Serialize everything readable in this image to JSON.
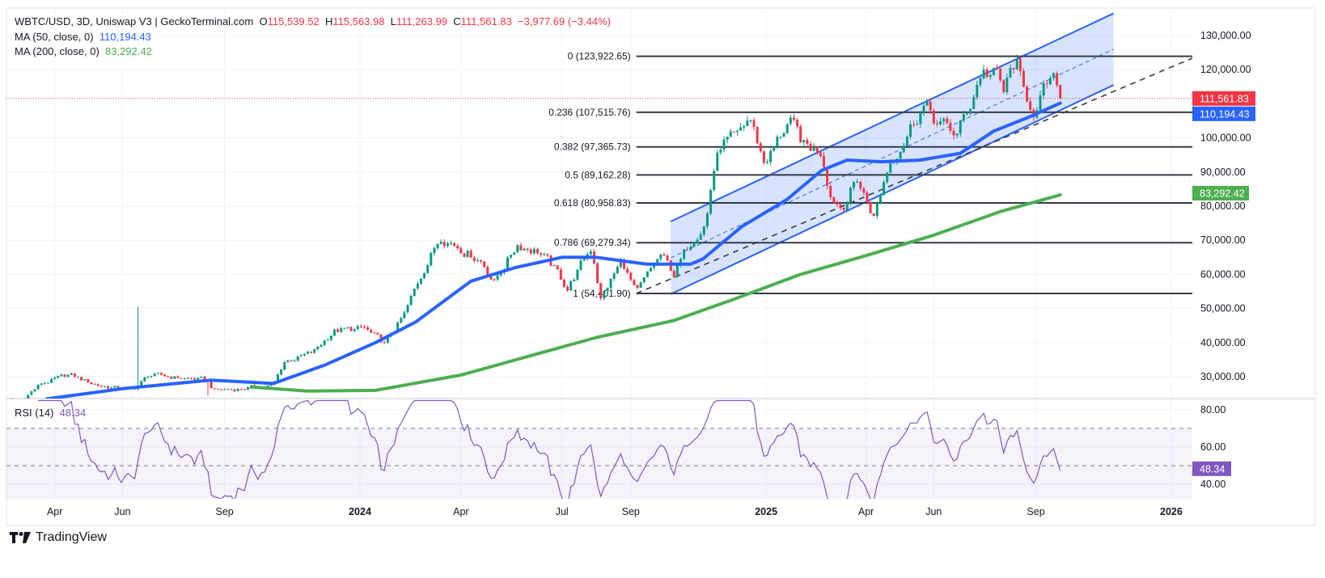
{
  "header": {
    "symbol": "WBTC/USD, 3D, Uniswap V3 | GeckoTerminal.com",
    "o_label": "O",
    "o": "115,539.52",
    "h_label": "H",
    "h": "115,563.98",
    "l_label": "L",
    "l": "111,263.99",
    "c_label": "C",
    "c": "111,561.83",
    "change": "−3,977.69 (−3.44%)"
  },
  "indicators": {
    "ma50": {
      "label": "MA (50, close, 0)",
      "value": "110,194.43",
      "color": "#2962ff"
    },
    "ma200": {
      "label": "MA (200, close, 0)",
      "value": "83,292.42",
      "color": "#4caf50"
    },
    "rsi": {
      "label": "RSI (14)",
      "value": "48.34",
      "color": "#7e57c2"
    }
  },
  "brand": "TradingView",
  "colors": {
    "up": "#089981",
    "down": "#f23645",
    "channel": "#2962ff",
    "fib": "#131722",
    "last_price": "#f23645"
  },
  "chart_data": {
    "type": "candlestick",
    "interval": "3D",
    "price_axis": {
      "ticks": [
        "130,000.00",
        "120,000.00",
        "100,000.00",
        "90,000.00",
        "80,000.00",
        "70,000.00",
        "60,000.00",
        "50,000.00",
        "40,000.00",
        "30,000.00"
      ],
      "tick_values": [
        130000,
        120000,
        100000,
        90000,
        80000,
        70000,
        60000,
        50000,
        40000,
        30000
      ],
      "ylim": [
        24000,
        137000
      ]
    },
    "time_axis": {
      "ticks": [
        {
          "label": "Apr",
          "date": "2023-04-01",
          "bold": false
        },
        {
          "label": "Jun",
          "date": "2023-06-01",
          "bold": false
        },
        {
          "label": "Sep",
          "date": "2023-09-01",
          "bold": false
        },
        {
          "label": "2024",
          "date": "2024-01-01",
          "bold": true
        },
        {
          "label": "Apr",
          "date": "2024-04-01",
          "bold": false
        },
        {
          "label": "Jul",
          "date": "2024-07-01",
          "bold": false
        },
        {
          "label": "Sep",
          "date": "2024-09-01",
          "bold": false
        },
        {
          "label": "2025",
          "date": "2025-01-01",
          "bold": true
        },
        {
          "label": "Apr",
          "date": "2025-04-01",
          "bold": false
        },
        {
          "label": "Jun",
          "date": "2025-06-01",
          "bold": false
        },
        {
          "label": "Sep",
          "date": "2025-09-01",
          "bold": false
        },
        {
          "label": "2026",
          "date": "2026-01-01",
          "bold": true
        }
      ]
    },
    "close_path": [
      [
        "2023-02-03",
        23500
      ],
      [
        "2023-03-01",
        23000
      ],
      [
        "2023-03-20",
        28000
      ],
      [
        "2023-04-14",
        30500
      ],
      [
        "2023-05-10",
        27500
      ],
      [
        "2023-06-10",
        26000
      ],
      [
        "2023-06-25",
        30500
      ],
      [
        "2023-07-20",
        29800
      ],
      [
        "2023-08-16",
        29000
      ],
      [
        "2023-08-22",
        26000
      ],
      [
        "2023-09-15",
        26500
      ],
      [
        "2023-10-15",
        27500
      ],
      [
        "2023-10-25",
        34500
      ],
      [
        "2023-11-20",
        37000
      ],
      [
        "2023-12-08",
        43500
      ],
      [
        "2024-01-05",
        44000
      ],
      [
        "2024-01-23",
        39500
      ],
      [
        "2024-02-10",
        48000
      ],
      [
        "2024-02-28",
        62000
      ],
      [
        "2024-03-14",
        71500
      ],
      [
        "2024-04-01",
        68000
      ],
      [
        "2024-04-20",
        64000
      ],
      [
        "2024-05-01",
        58000
      ],
      [
        "2024-05-22",
        69000
      ],
      [
        "2024-06-10",
        67000
      ],
      [
        "2024-06-25",
        61000
      ],
      [
        "2024-07-06",
        56000
      ],
      [
        "2024-07-28",
        68000
      ],
      [
        "2024-08-05",
        53000
      ],
      [
        "2024-08-24",
        64000
      ],
      [
        "2024-09-06",
        54000
      ],
      [
        "2024-09-28",
        65500
      ],
      [
        "2024-10-10",
        60000
      ],
      [
        "2024-10-29",
        72000
      ],
      [
        "2024-11-08",
        76000
      ],
      [
        "2024-11-14",
        90000
      ],
      [
        "2024-11-22",
        98500
      ],
      [
        "2024-12-06",
        99000
      ],
      [
        "2024-12-17",
        106000
      ],
      [
        "2024-12-30",
        93000
      ],
      [
        "2025-01-08",
        97000
      ],
      [
        "2025-01-21",
        105000
      ],
      [
        "2025-02-05",
        97000
      ],
      [
        "2025-02-20",
        96500
      ],
      [
        "2025-02-28",
        84000
      ],
      [
        "2025-03-10",
        80000
      ],
      [
        "2025-03-24",
        88000
      ],
      [
        "2025-04-08",
        77000
      ],
      [
        "2025-04-22",
        93000
      ],
      [
        "2025-05-12",
        104000
      ],
      [
        "2025-05-22",
        110000
      ],
      [
        "2025-06-05",
        104000
      ],
      [
        "2025-06-22",
        101000
      ],
      [
        "2025-07-03",
        109000
      ],
      [
        "2025-07-14",
        120000
      ],
      [
        "2025-07-28",
        118000
      ],
      [
        "2025-08-03",
        113000
      ],
      [
        "2025-08-14",
        123000
      ],
      [
        "2025-08-20",
        113000
      ],
      [
        "2025-09-01",
        108000
      ],
      [
        "2025-09-12",
        115500
      ],
      [
        "2025-09-20",
        115539.52
      ]
    ],
    "last_candle": {
      "date": "2025-09-23",
      "open": 115539.52,
      "high": 115563.98,
      "low": 111263.99,
      "close": 111561.83
    },
    "notable_wicks": [
      {
        "date": "2023-06-16",
        "high": 50500
      },
      {
        "date": "2023-08-17",
        "low": 24500
      }
    ],
    "ma50_path": [
      [
        "2023-03-25",
        23500
      ],
      [
        "2023-06-01",
        26500
      ],
      [
        "2023-08-20",
        29000
      ],
      [
        "2023-10-15",
        28000
      ],
      [
        "2023-12-01",
        33500
      ],
      [
        "2024-01-15",
        40000
      ],
      [
        "2024-02-20",
        46000
      ],
      [
        "2024-04-10",
        58000
      ],
      [
        "2024-05-20",
        62000
      ],
      [
        "2024-07-01",
        65000
      ],
      [
        "2024-08-01",
        65000
      ],
      [
        "2024-09-15",
        63000
      ],
      [
        "2024-10-25",
        63000
      ],
      [
        "2024-11-05",
        64500
      ],
      [
        "2024-12-10",
        74000
      ],
      [
        "2025-01-20",
        82000
      ],
      [
        "2025-02-20",
        90500
      ],
      [
        "2025-03-15",
        93500
      ],
      [
        "2025-04-15",
        93000
      ],
      [
        "2025-05-20",
        93500
      ],
      [
        "2025-06-25",
        95500
      ],
      [
        "2025-07-25",
        102000
      ],
      [
        "2025-08-25",
        106000
      ],
      [
        "2025-09-23",
        110194.43
      ]
    ],
    "ma200_path": [
      [
        "2023-09-25",
        27000
      ],
      [
        "2023-11-15",
        25800
      ],
      [
        "2024-01-15",
        26000
      ],
      [
        "2024-04-01",
        30500
      ],
      [
        "2024-06-01",
        36000
      ],
      [
        "2024-08-01",
        41500
      ],
      [
        "2024-10-10",
        46500
      ],
      [
        "2024-12-01",
        52500
      ],
      [
        "2025-02-01",
        60000
      ],
      [
        "2025-04-01",
        65500
      ],
      [
        "2025-06-01",
        71500
      ],
      [
        "2025-08-01",
        78500
      ],
      [
        "2025-09-23",
        83292.42
      ]
    ],
    "rsi_axis": {
      "ticks": [
        "80.00",
        "60.00",
        "40.00"
      ],
      "tick_values": [
        80,
        60,
        40
      ],
      "bands": [
        70,
        50,
        30
      ],
      "ylim": [
        25,
        86
      ]
    },
    "fibonacci": {
      "levels": [
        {
          "ratio": "0",
          "price": 123922.65,
          "label": "0 (123,922.65)"
        },
        {
          "ratio": "0.236",
          "price": 107515.76,
          "label": "0.236 (107,515.76)"
        },
        {
          "ratio": "0.382",
          "price": 97365.73,
          "label": "0.382 (97,365.73)"
        },
        {
          "ratio": "0.5",
          "price": 89162.28,
          "label": "0.5 (89,162.28)"
        },
        {
          "ratio": "0.618",
          "price": 80958.83,
          "label": "0.618 (80,958.83)"
        },
        {
          "ratio": "0.786",
          "price": 69279.34,
          "label": "0.786 (69,279.34)"
        },
        {
          "ratio": "1",
          "price": 54401.9,
          "label": "1 (54,401.90)"
        }
      ],
      "start_date": "2024-09-06",
      "end_date": "2026-01-24"
    },
    "parallel_channel": {
      "upper": [
        [
          "2024-10-07",
          75500
        ],
        [
          "2025-11-10",
          136500
        ]
      ],
      "lower": [
        [
          "2024-10-07",
          54200
        ],
        [
          "2025-11-10",
          115500
        ]
      ]
    },
    "trend_line": [
      [
        "2024-09-06",
        54401.9
      ],
      [
        "2026-01-24",
        123922.65
      ]
    ],
    "price_labels": [
      {
        "text": "111,561.83",
        "value": 111561.83,
        "color": "#f23645"
      },
      {
        "text": "110,194.43",
        "value": 110194.43,
        "color": "#2962ff"
      },
      {
        "text": "83,292.42",
        "value": 83292.42,
        "color": "#4caf50"
      }
    ],
    "rsi_label": {
      "text": "48.34",
      "value": 48.34,
      "color": "#7e57c2"
    }
  }
}
